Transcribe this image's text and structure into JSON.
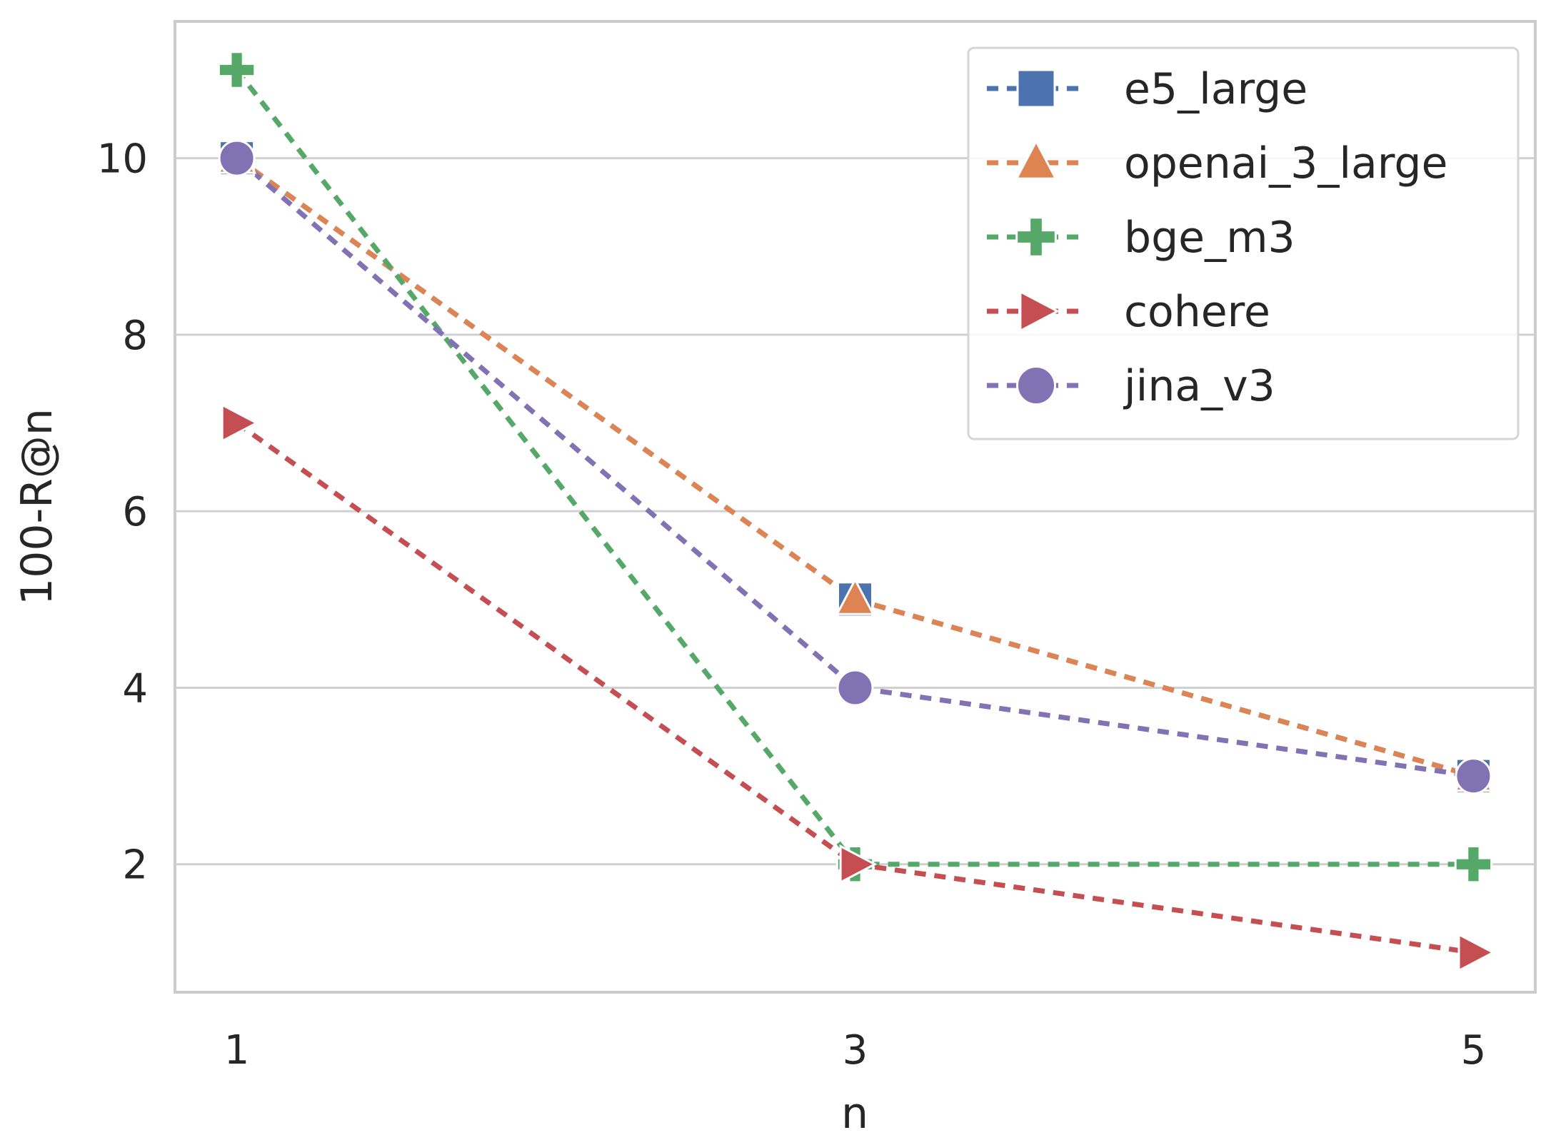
{
  "chart_data": {
    "type": "line",
    "title": "",
    "xlabel": "n",
    "ylabel": "100-R@n",
    "x": [
      1,
      3,
      5
    ],
    "xticks": [
      "1",
      "3",
      "5"
    ],
    "yticks": [
      "2",
      "4",
      "6",
      "8",
      "10"
    ],
    "xlim": [
      0.8,
      5.2
    ],
    "ylim": [
      0.55,
      11.55
    ],
    "grid": true,
    "legend_position": "top-right",
    "series": [
      {
        "name": "e5_large",
        "values": [
          10,
          5,
          3
        ],
        "color": "#4c72b0",
        "marker": "square"
      },
      {
        "name": "openai_3_large",
        "values": [
          10,
          5,
          3
        ],
        "color": "#dd8452",
        "marker": "triangle"
      },
      {
        "name": "bge_m3",
        "values": [
          11,
          2,
          2
        ],
        "color": "#55a868",
        "marker": "plus"
      },
      {
        "name": "cohere",
        "values": [
          7,
          2,
          1
        ],
        "color": "#c44e52",
        "marker": "triangle-right"
      },
      {
        "name": "jina_v3",
        "values": [
          10,
          4,
          3
        ],
        "color": "#8172b3",
        "marker": "circle"
      }
    ]
  }
}
